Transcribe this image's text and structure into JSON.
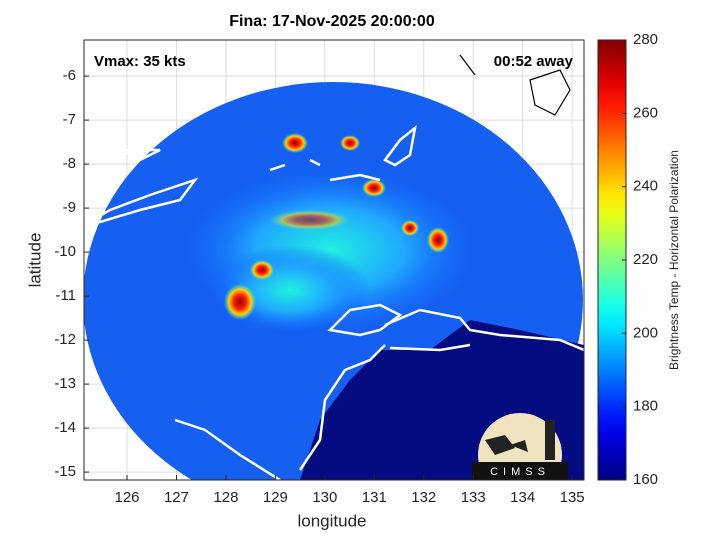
{
  "chart_data": {
    "type": "map",
    "title": "Fina: 17-Nov-2025 20:00:00",
    "annotations": [
      "Vmax: 35 kts",
      "00:52 away"
    ],
    "xlabel": "longitude",
    "ylabel": "latitude",
    "xlim": [
      125.13,
      135.24
    ],
    "xticks": [
      126,
      127,
      128,
      129,
      130,
      131,
      132,
      133,
      134,
      135
    ],
    "ylim": [
      -15.18,
      -5.18
    ],
    "yticks": [
      -6,
      -7,
      -8,
      -9,
      -10,
      -11,
      -12,
      -13,
      -14,
      -15
    ],
    "grid": true,
    "colorbar": {
      "label": "Brightness Temp - Horizontal Polarization",
      "lim": [
        160,
        280
      ],
      "ticks": [
        160,
        180,
        200,
        220,
        240,
        260,
        280
      ],
      "colormap": "jet"
    },
    "logo_text": "CIMSS"
  }
}
